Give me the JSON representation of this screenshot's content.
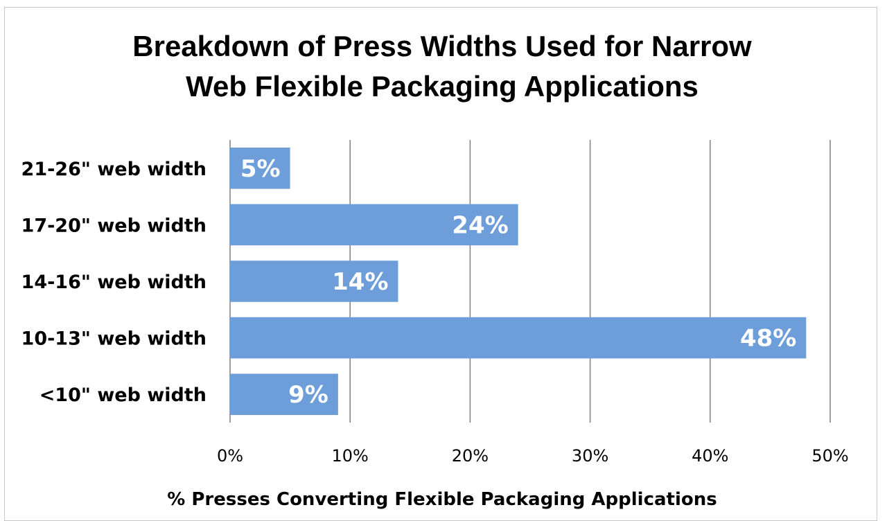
{
  "chart_data": {
    "type": "bar",
    "orientation": "horizontal",
    "title_lines": [
      "Breakdown of Press Widths Used for Narrow",
      "Web Flexible Packaging Applications"
    ],
    "categories": [
      "21-26\" web width",
      "17-20\" web width",
      "14-16\" web width",
      "10-13\" web width",
      "<10\" web width"
    ],
    "values": [
      5,
      24,
      14,
      48,
      9
    ],
    "data_labels": [
      "5%",
      "24%",
      "14%",
      "48%",
      "9%"
    ],
    "xlim": [
      0,
      50
    ],
    "x_ticks": [
      0,
      10,
      20,
      30,
      40,
      50
    ],
    "x_tick_labels": [
      "0%",
      "10%",
      "20%",
      "30%",
      "40%",
      "50%"
    ],
    "xlabel": "% Presses Converting Flexible Packaging Applications",
    "ylabel": "",
    "grid": true,
    "colors": {
      "bar": "#6d9eda",
      "gridline": "#7f7f7f",
      "axis": "#7f7f7f"
    }
  }
}
